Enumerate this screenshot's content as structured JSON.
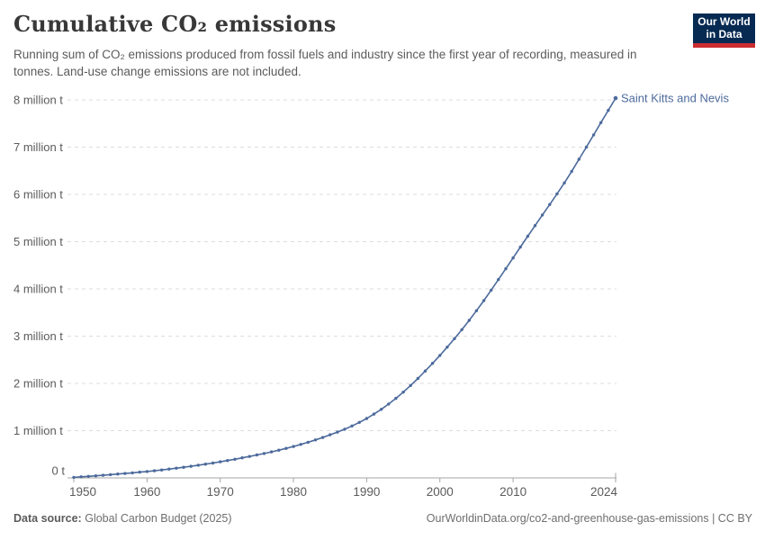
{
  "header": {
    "title": "Cumulative CO₂ emissions",
    "subtitle": "Running sum of CO₂ emissions produced from fossil fuels and industry since the first year of recording, measured in tonnes. Land-use change emissions are not included.",
    "logo": {
      "line1": "Our World",
      "line2": "in Data",
      "bg_color": "#062a52",
      "accent_color": "#cb2d30"
    }
  },
  "chart_data": {
    "type": "line",
    "title": "Cumulative CO₂ emissions",
    "unit": "tonnes",
    "grid": true,
    "legend_position": "end-of-line",
    "xlim": [
      1950,
      2024
    ],
    "ylim": [
      0,
      8000000
    ],
    "x_ticks": [
      1950,
      1960,
      1970,
      1980,
      1990,
      2000,
      2010,
      2024
    ],
    "y_tick_labels": [
      "0 t",
      "1 million t",
      "2 million t",
      "3 million t",
      "4 million t",
      "5 million t",
      "6 million t",
      "7 million t",
      "8 million t"
    ],
    "y_tick_values_million_t": [
      0,
      1,
      2,
      3,
      4,
      5,
      6,
      7,
      8
    ],
    "series": [
      {
        "name": "Saint Kitts and Nevis",
        "color": "#4C6A9C",
        "unit": "million t",
        "x": [
          1950,
          1951,
          1952,
          1953,
          1954,
          1955,
          1956,
          1957,
          1958,
          1959,
          1960,
          1961,
          1962,
          1963,
          1964,
          1965,
          1966,
          1967,
          1968,
          1969,
          1970,
          1971,
          1972,
          1973,
          1974,
          1975,
          1976,
          1977,
          1978,
          1979,
          1980,
          1981,
          1982,
          1983,
          1984,
          1985,
          1986,
          1987,
          1988,
          1989,
          1990,
          1991,
          1992,
          1993,
          1994,
          1995,
          1996,
          1997,
          1998,
          1999,
          2000,
          2001,
          2002,
          2003,
          2004,
          2005,
          2006,
          2007,
          2008,
          2009,
          2010,
          2011,
          2012,
          2013,
          2014,
          2015,
          2016,
          2017,
          2018,
          2019,
          2020,
          2021,
          2022,
          2023,
          2024
        ],
        "values": [
          0.011,
          0.022,
          0.033,
          0.044,
          0.056,
          0.068,
          0.081,
          0.094,
          0.107,
          0.121,
          0.135,
          0.151,
          0.168,
          0.186,
          0.205,
          0.225,
          0.246,
          0.268,
          0.291,
          0.315,
          0.34,
          0.367,
          0.395,
          0.424,
          0.454,
          0.485,
          0.517,
          0.551,
          0.587,
          0.625,
          0.665,
          0.708,
          0.754,
          0.803,
          0.856,
          0.912,
          0.97,
          1.031,
          1.1,
          1.175,
          1.258,
          1.35,
          1.452,
          1.563,
          1.684,
          1.815,
          1.956,
          2.105,
          2.262,
          2.425,
          2.593,
          2.767,
          2.948,
          3.137,
          3.334,
          3.539,
          3.752,
          3.973,
          4.198,
          4.426,
          4.656,
          4.886,
          5.114,
          5.34,
          5.564,
          5.787,
          6.011,
          6.244,
          6.488,
          6.742,
          7.0,
          7.26,
          7.52,
          7.78,
          8.037
        ]
      }
    ],
    "colors": {
      "gridline": "#dddddd",
      "axis": "#a5a5a5",
      "tick_label": "#5b5b5b"
    }
  },
  "footer": {
    "source_label": "Data source:",
    "source_value": "Global Carbon Budget (2025)",
    "link_text": "OurWorldinData.org/co2-and-greenhouse-gas-emissions | CC BY"
  }
}
